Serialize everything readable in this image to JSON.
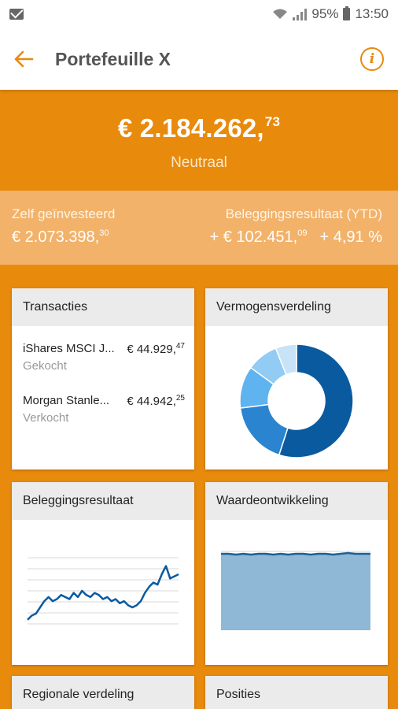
{
  "status_bar": {
    "battery_percent": "95%",
    "time": "13:50",
    "icons": [
      "mail-icon",
      "wifi-icon",
      "signal-icon",
      "battery-icon"
    ]
  },
  "app_bar": {
    "title": "Portefeuille X",
    "back_icon": "arrow-left-icon",
    "info_icon": "info-icon",
    "info_glyph": "i"
  },
  "hero": {
    "total_main": "€ 2.184.262,",
    "total_cents": "73",
    "status": "Neutraal"
  },
  "summary": {
    "invested_label": "Zelf geïnvesteerd",
    "invested_main": "€ 2.073.398,",
    "invested_cents": "30",
    "result_label": "Beleggingsresultaat (YTD)",
    "result_main": "+ € 102.451,",
    "result_cents": "09",
    "result_pct": "+ 4,91 %"
  },
  "cards": {
    "transacties": {
      "title": "Transacties",
      "items": [
        {
          "name": "iShares MSCI J...",
          "amount_main": "€ 44.929,",
          "amount_cents": "47",
          "type": "Gekocht"
        },
        {
          "name": "Morgan Stanle...",
          "amount_main": "€ 44.942,",
          "amount_cents": "25",
          "type": "Verkocht"
        }
      ]
    },
    "vermogensverdeling": {
      "title": "Vermogensverdeling"
    },
    "beleggingsresultaat": {
      "title": "Beleggingsresultaat"
    },
    "waardeontwikkeling": {
      "title": "Waardeontwikkeling"
    },
    "regionale_verdeling": {
      "title": "Regionale verdeling"
    },
    "posities": {
      "title": "Posities"
    }
  },
  "colors": {
    "accent": "#e88a0c",
    "summary_band": "#f2b26a",
    "chart_dark_blue": "#0a5aa0",
    "chart_area": "#8fb8d6"
  },
  "chart_data": [
    {
      "type": "pie",
      "slices": [
        {
          "value": 55,
          "color": "#0a5aa0"
        },
        {
          "value": 18,
          "color": "#2a84cf"
        },
        {
          "value": 12,
          "color": "#5fb3ee"
        },
        {
          "value": 9,
          "color": "#92cbf3"
        },
        {
          "value": 6,
          "color": "#c8e3f8"
        }
      ]
    },
    {
      "type": "line",
      "values": [
        2,
        4,
        5,
        8,
        11,
        13,
        11,
        12,
        14,
        13,
        12,
        15,
        13,
        16,
        14,
        13,
        15,
        14,
        12,
        13,
        11,
        12,
        10,
        11,
        9,
        8,
        9,
        11,
        15,
        18,
        20,
        19,
        24,
        28,
        22,
        23,
        24
      ],
      "ylim": [
        0,
        32
      ],
      "grid": true
    },
    {
      "type": "area",
      "values": [
        97,
        97,
        96,
        97,
        96,
        97,
        97,
        96,
        97,
        96,
        97,
        97,
        96,
        97,
        97,
        96,
        97,
        98,
        97,
        97,
        97
      ],
      "ylim": [
        0,
        100
      ],
      "grid": false
    }
  ]
}
